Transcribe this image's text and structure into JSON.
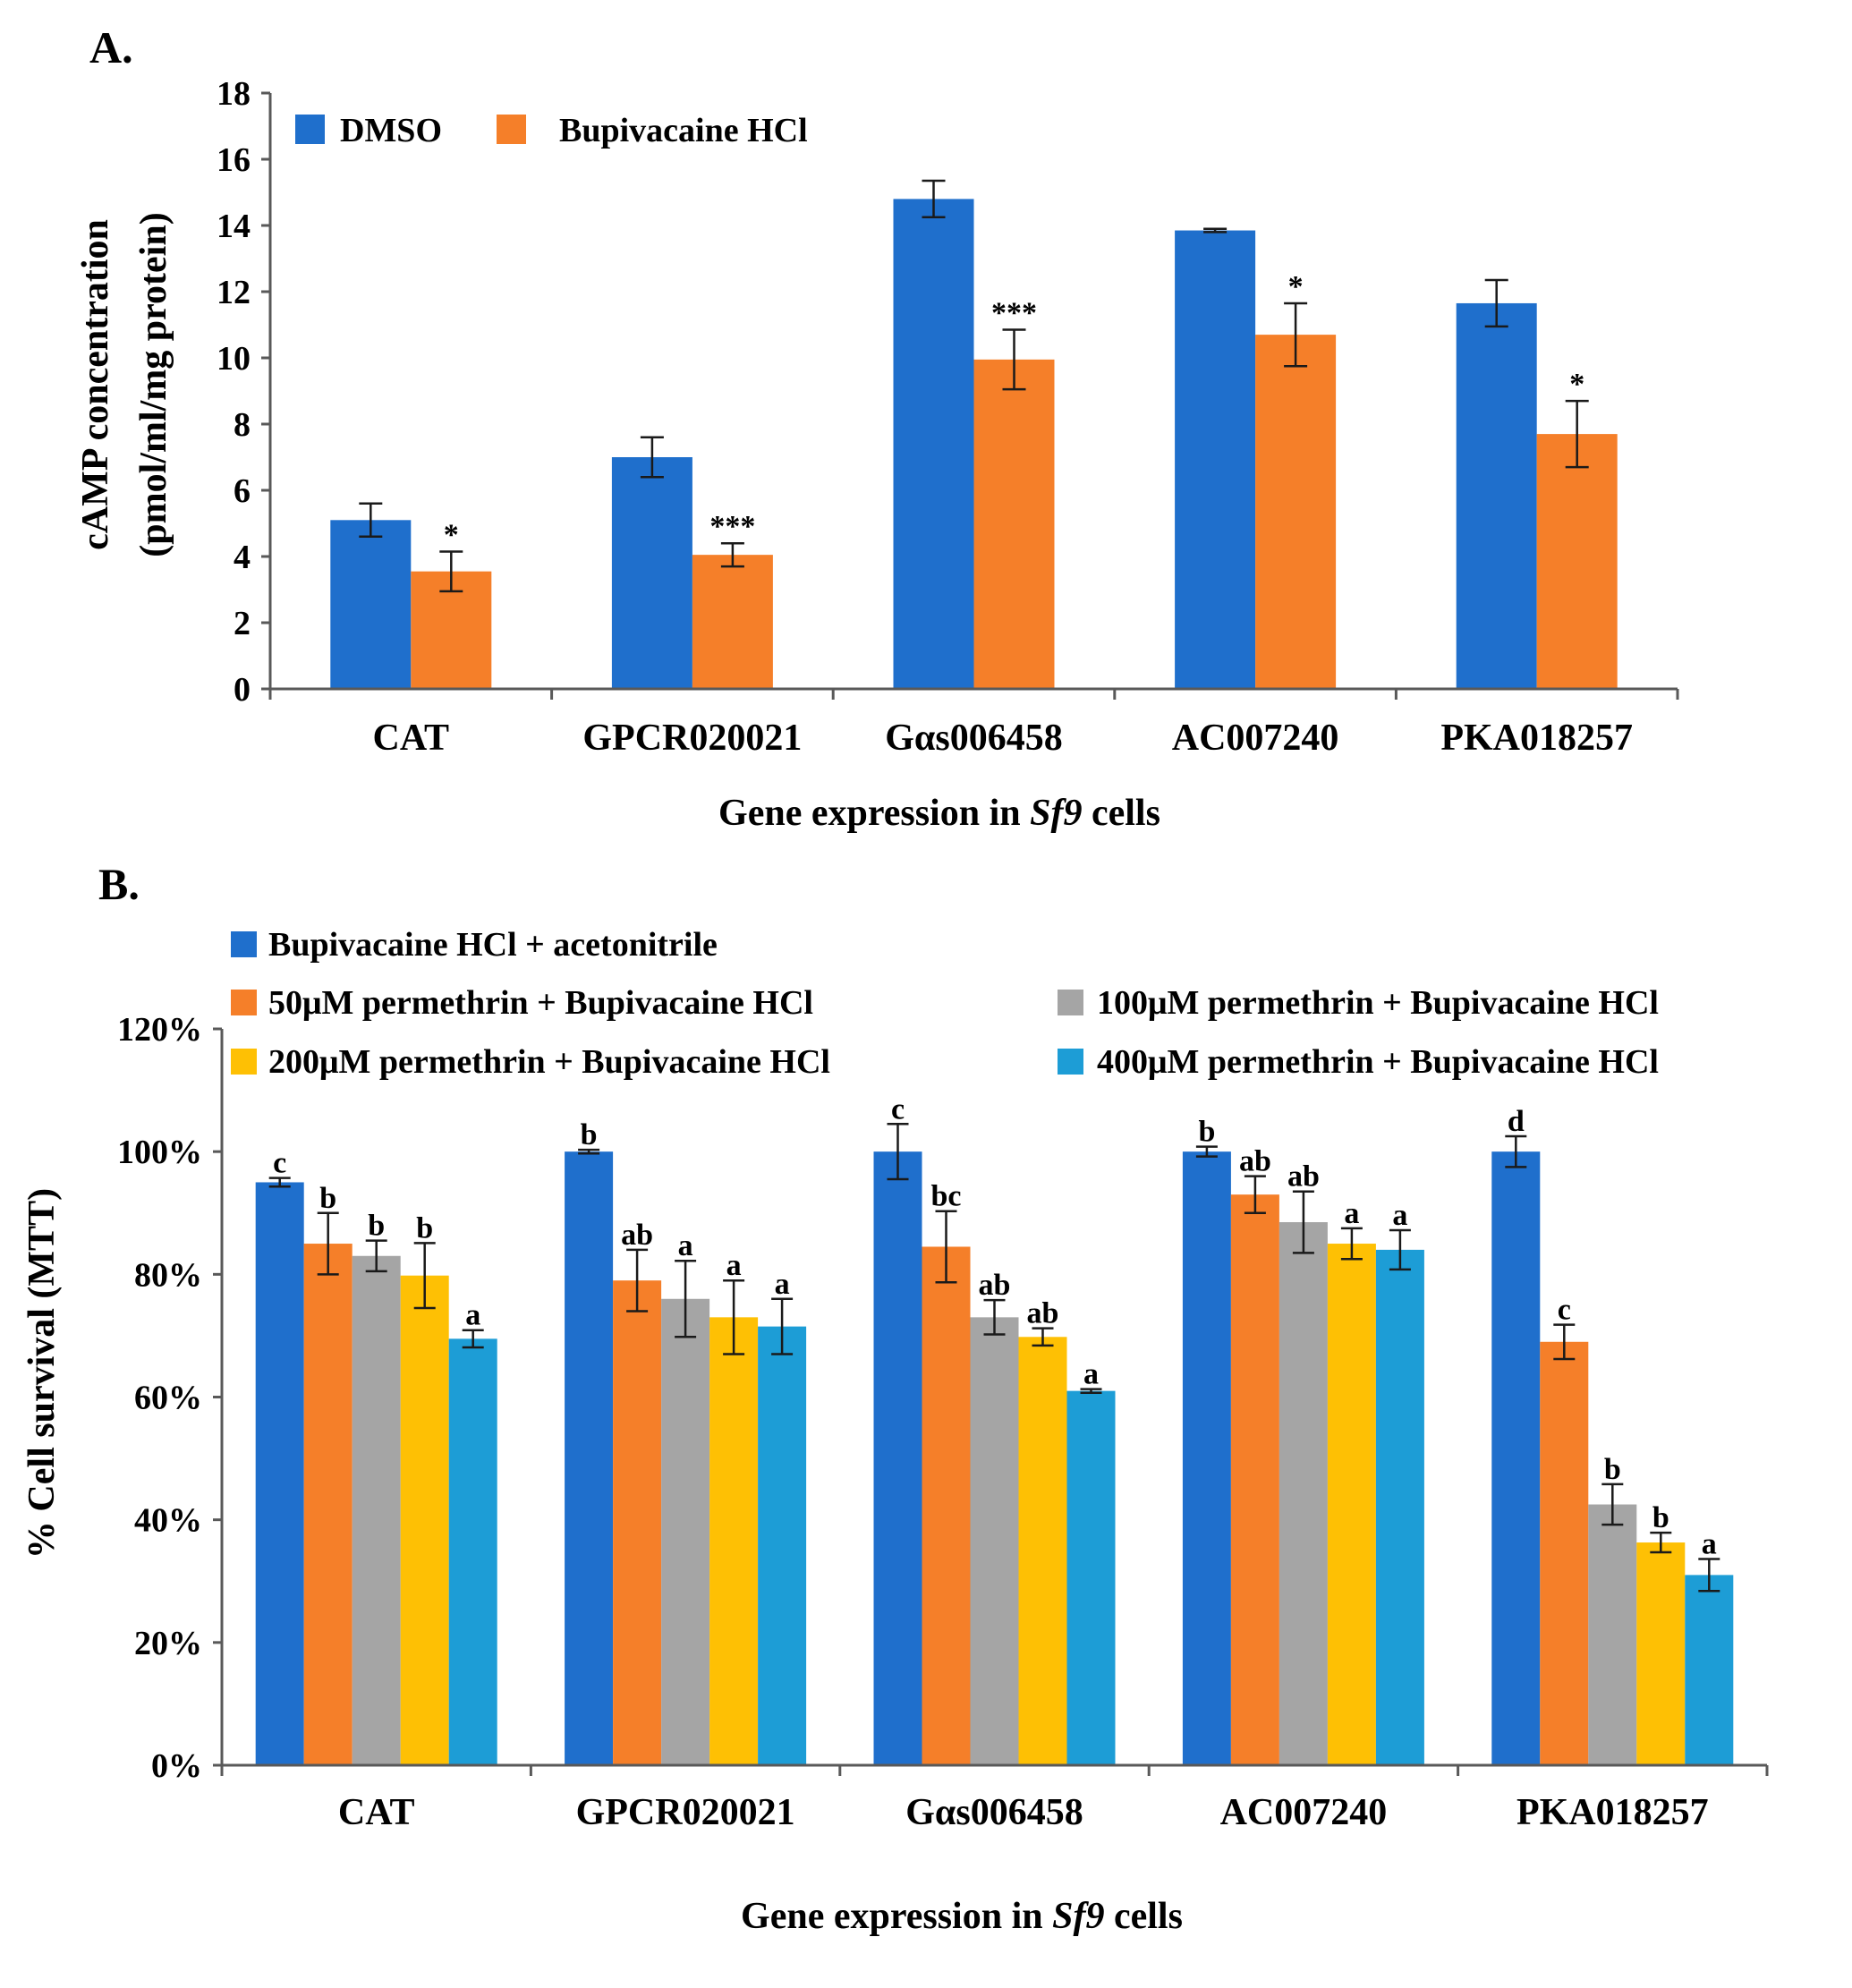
{
  "chart_data": [
    {
      "panel": "A.",
      "type": "bar",
      "categories": [
        "CAT",
        "GPCR020021",
        "Gαs006458",
        "AC007240",
        "PKA018257"
      ],
      "series": [
        {
          "name": "DMSO",
          "color": "#1f6fcc",
          "values": [
            5.1,
            7.0,
            14.8,
            13.85,
            11.65
          ],
          "errors": [
            0.5,
            0.6,
            0.55,
            0.05,
            0.7
          ],
          "labels": [
            "",
            "",
            "",
            "",
            ""
          ]
        },
        {
          "name": "Bupivacaine HCl",
          "color": "#f57f29",
          "values": [
            3.55,
            4.05,
            9.95,
            10.7,
            7.7
          ],
          "errors": [
            0.6,
            0.35,
            0.9,
            0.95,
            1.0
          ],
          "labels": [
            "*",
            "***",
            "***",
            "*",
            "*"
          ]
        }
      ],
      "ylabel_line1": "cAMP concentration",
      "ylabel_line2": "(pmol/ml/mg protein)",
      "xlabel_prefix": "Gene expression  in ",
      "xlabel_italic": "Sf9",
      "xlabel_suffix": " cells",
      "ylim": [
        0,
        18
      ],
      "yticks": [
        0,
        2,
        4,
        6,
        8,
        10,
        12,
        14,
        16,
        18
      ],
      "ytick_labels": [
        "0",
        "2",
        "4",
        "6",
        "8",
        "10",
        "12",
        "14",
        "16",
        "18"
      ],
      "legend_position": "top-left"
    },
    {
      "panel": "B.",
      "type": "bar",
      "categories": [
        "CAT",
        "GPCR020021",
        "Gαs006458",
        "AC007240",
        "PKA018257"
      ],
      "series": [
        {
          "name": "Bupivacaine HCl + acetonitrile",
          "color": "#1f6fcc",
          "values": [
            95,
            100,
            100,
            100,
            100
          ],
          "errors": [
            0.7,
            0.3,
            4.5,
            0.8,
            2.5
          ],
          "labels": [
            "c",
            "b",
            "c",
            "b",
            "d"
          ]
        },
        {
          "name": "50μM permethrin + Bupivacaine HCl",
          "color": "#f57f29",
          "values": [
            85,
            79,
            84.5,
            93,
            69
          ],
          "errors": [
            5,
            5,
            5.8,
            3,
            2.8
          ],
          "labels": [
            "b",
            "ab",
            "bc",
            "ab",
            "c"
          ]
        },
        {
          "name": "100μM permethrin + Bupivacaine HCl",
          "color": "#a5a5a5",
          "values": [
            83,
            76,
            73,
            88.5,
            42.5
          ],
          "errors": [
            2.5,
            6.2,
            2.8,
            5,
            3.3
          ],
          "labels": [
            "b",
            "a",
            "ab",
            "ab",
            "b"
          ]
        },
        {
          "name": "200μM permethrin + Bupivacaine HCl",
          "color": "#fec004",
          "values": [
            79.8,
            73,
            69.8,
            85,
            36.3
          ],
          "errors": [
            5.3,
            6,
            1.4,
            2.5,
            1.6
          ],
          "labels": [
            "b",
            "a",
            "ab",
            "a",
            "b"
          ]
        },
        {
          "name": "400μM permethrin + Bupivacaine HCl",
          "color": "#1d9dd6",
          "values": [
            69.5,
            71.5,
            61,
            84,
            31
          ],
          "errors": [
            1.4,
            4.5,
            0.3,
            3.2,
            2.6
          ],
          "labels": [
            "a",
            "a",
            "a",
            "a",
            "a"
          ]
        }
      ],
      "ylabel": "% Cell survival  (MTT)",
      "xlabel_prefix": "Gene expression  in ",
      "xlabel_italic": "Sf9",
      "xlabel_suffix": " cells",
      "ylim": [
        0,
        120
      ],
      "yticks": [
        0,
        20,
        40,
        60,
        80,
        100,
        120
      ],
      "ytick_labels": [
        "0%",
        "20%",
        "40%",
        "60%",
        "80%",
        "100%",
        "120%"
      ],
      "legend_position": "top"
    }
  ]
}
